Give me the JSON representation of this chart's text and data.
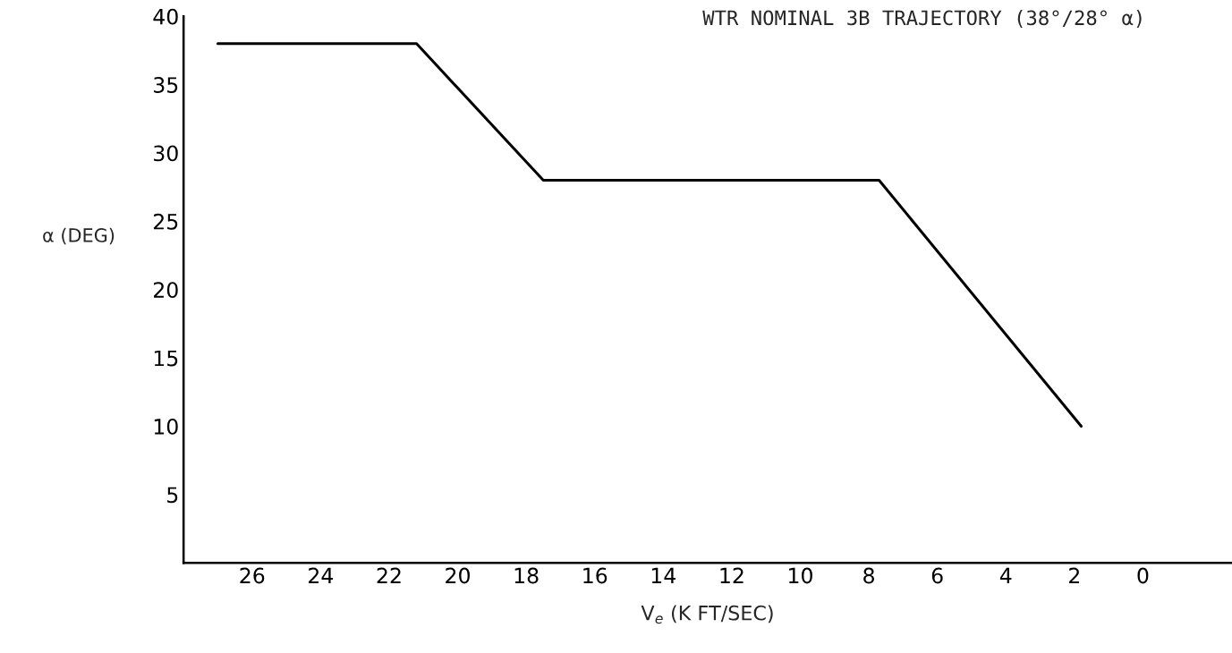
{
  "chart_data": {
    "type": "line",
    "title": "WTR NOMINAL 3B TRAJECTORY (38°/28° α)",
    "xlabel": "V$_{e}$ (K FT/SEC)",
    "ylabel": "α (DEG)",
    "x": [
      27.0,
      21.2,
      17.5,
      7.7,
      1.8
    ],
    "series": [
      {
        "color": "#000000",
        "values": [
          38,
          38,
          28,
          28,
          10
        ]
      }
    ],
    "xlim": [
      28,
      -2.6
    ],
    "xticks": [
      26,
      24,
      22,
      20,
      18,
      16,
      14,
      12,
      10,
      8,
      6,
      4,
      2,
      0
    ],
    "ylim": [
      0,
      40
    ],
    "yticks": [
      5,
      10,
      15,
      20,
      25,
      30,
      35,
      40
    ],
    "grid": false,
    "legend": false,
    "marker": "none",
    "line_style": "solid"
  }
}
